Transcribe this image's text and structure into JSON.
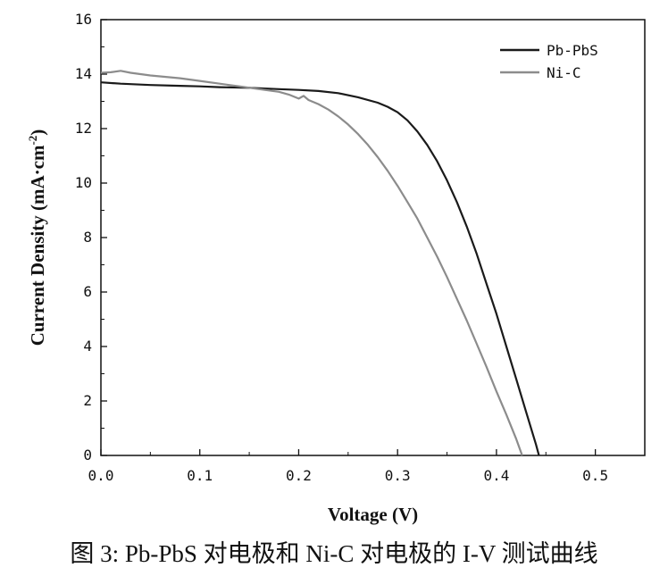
{
  "caption": "图 3: Pb-PbS 对电极和 Ni-C 对电极的 I-V 测试曲线",
  "chart_data": {
    "type": "line",
    "title": "",
    "xlabel": "Voltage (V)",
    "ylabel_main": "Current Density (mA·cm",
    "ylabel_sup": "-2",
    "ylabel_close": ")",
    "xlim": [
      0.0,
      0.55
    ],
    "ylim": [
      0,
      16
    ],
    "x_ticks": [
      0.0,
      0.1,
      0.2,
      0.3,
      0.4,
      0.5
    ],
    "x_tick_labels": [
      "0.0",
      "0.1",
      "0.2",
      "0.3",
      "0.4",
      "0.5"
    ],
    "y_ticks": [
      0,
      2,
      4,
      6,
      8,
      10,
      12,
      14,
      16
    ],
    "y_tick_labels": [
      "0",
      "2",
      "4",
      "6",
      "8",
      "10",
      "12",
      "14",
      "16"
    ],
    "grid": false,
    "legend_position": "top-right",
    "series": [
      {
        "name": "Pb-PbS",
        "color": "#1a1a1a",
        "points": [
          [
            0.0,
            13.7
          ],
          [
            0.02,
            13.65
          ],
          [
            0.05,
            13.6
          ],
          [
            0.08,
            13.57
          ],
          [
            0.1,
            13.55
          ],
          [
            0.12,
            13.52
          ],
          [
            0.15,
            13.5
          ],
          [
            0.18,
            13.45
          ],
          [
            0.2,
            13.42
          ],
          [
            0.22,
            13.38
          ],
          [
            0.24,
            13.3
          ],
          [
            0.26,
            13.15
          ],
          [
            0.28,
            12.95
          ],
          [
            0.29,
            12.8
          ],
          [
            0.3,
            12.6
          ],
          [
            0.31,
            12.3
          ],
          [
            0.32,
            11.9
          ],
          [
            0.33,
            11.4
          ],
          [
            0.34,
            10.8
          ],
          [
            0.35,
            10.1
          ],
          [
            0.36,
            9.3
          ],
          [
            0.37,
            8.4
          ],
          [
            0.38,
            7.4
          ],
          [
            0.39,
            6.3
          ],
          [
            0.4,
            5.2
          ],
          [
            0.41,
            4.0
          ],
          [
            0.42,
            2.8
          ],
          [
            0.43,
            1.6
          ],
          [
            0.44,
            0.4
          ],
          [
            0.443,
            0.0
          ]
        ]
      },
      {
        "name": "Ni-C",
        "color": "#8c8c8c",
        "points": [
          [
            0.0,
            14.05
          ],
          [
            0.01,
            14.07
          ],
          [
            0.02,
            14.12
          ],
          [
            0.03,
            14.05
          ],
          [
            0.05,
            13.95
          ],
          [
            0.08,
            13.85
          ],
          [
            0.1,
            13.75
          ],
          [
            0.12,
            13.65
          ],
          [
            0.14,
            13.55
          ],
          [
            0.16,
            13.45
          ],
          [
            0.18,
            13.35
          ],
          [
            0.19,
            13.25
          ],
          [
            0.2,
            13.1
          ],
          [
            0.205,
            13.2
          ],
          [
            0.21,
            13.05
          ],
          [
            0.22,
            12.9
          ],
          [
            0.23,
            12.7
          ],
          [
            0.24,
            12.45
          ],
          [
            0.25,
            12.15
          ],
          [
            0.26,
            11.8
          ],
          [
            0.27,
            11.4
          ],
          [
            0.28,
            10.95
          ],
          [
            0.29,
            10.45
          ],
          [
            0.3,
            9.9
          ],
          [
            0.31,
            9.3
          ],
          [
            0.32,
            8.7
          ],
          [
            0.33,
            8.0
          ],
          [
            0.34,
            7.3
          ],
          [
            0.35,
            6.55
          ],
          [
            0.36,
            5.75
          ],
          [
            0.37,
            4.95
          ],
          [
            0.38,
            4.1
          ],
          [
            0.39,
            3.25
          ],
          [
            0.4,
            2.35
          ],
          [
            0.41,
            1.5
          ],
          [
            0.42,
            0.6
          ],
          [
            0.426,
            0.0
          ]
        ]
      }
    ]
  }
}
